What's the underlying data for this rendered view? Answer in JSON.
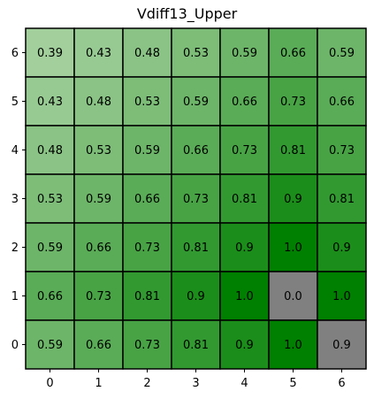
{
  "chart_data": {
    "type": "heatmap",
    "title": "Vdiff13_Upper",
    "x_ticks": [
      "0",
      "1",
      "2",
      "3",
      "4",
      "5",
      "6"
    ],
    "y_ticks": [
      "0",
      "1",
      "2",
      "3",
      "4",
      "5",
      "6"
    ],
    "rows_top_to_bottom": [
      {
        "y": "6",
        "values": [
          0.39,
          0.43,
          0.48,
          0.53,
          0.59,
          0.66,
          0.59
        ],
        "labels": [
          "0.39",
          "0.43",
          "0.48",
          "0.53",
          "0.59",
          "0.66",
          "0.59"
        ]
      },
      {
        "y": "5",
        "values": [
          0.43,
          0.48,
          0.53,
          0.59,
          0.66,
          0.73,
          0.66
        ],
        "labels": [
          "0.43",
          "0.48",
          "0.53",
          "0.59",
          "0.66",
          "0.73",
          "0.66"
        ]
      },
      {
        "y": "4",
        "values": [
          0.48,
          0.53,
          0.59,
          0.66,
          0.73,
          0.81,
          0.73
        ],
        "labels": [
          "0.48",
          "0.53",
          "0.59",
          "0.66",
          "0.73",
          "0.81",
          "0.73"
        ]
      },
      {
        "y": "3",
        "values": [
          0.53,
          0.59,
          0.66,
          0.73,
          0.81,
          0.9,
          0.81
        ],
        "labels": [
          "0.53",
          "0.59",
          "0.66",
          "0.73",
          "0.81",
          "0.9",
          "0.81"
        ]
      },
      {
        "y": "2",
        "values": [
          0.59,
          0.66,
          0.73,
          0.81,
          0.9,
          1.0,
          0.9
        ],
        "labels": [
          "0.59",
          "0.66",
          "0.73",
          "0.81",
          "0.9",
          "1.0",
          "0.9"
        ]
      },
      {
        "y": "1",
        "values": [
          0.66,
          0.73,
          0.81,
          0.9,
          1.0,
          0.0,
          1.0
        ],
        "labels": [
          "0.66",
          "0.73",
          "0.81",
          "0.9",
          "1.0",
          "0.0",
          "1.0"
        ]
      },
      {
        "y": "0",
        "values": [
          0.59,
          0.66,
          0.73,
          0.81,
          0.9,
          1.0,
          0.9
        ],
        "labels": [
          "0.59",
          "0.66",
          "0.73",
          "0.81",
          "0.9",
          "1.0",
          "0.9"
        ]
      }
    ],
    "gray_cells": [
      {
        "x": "5",
        "y": "1"
      },
      {
        "x": "6",
        "y": "0"
      }
    ],
    "colors": {
      "low": "#a2cf9c",
      "high": "#008000",
      "masked": "#808080",
      "grid": "#000000"
    }
  }
}
